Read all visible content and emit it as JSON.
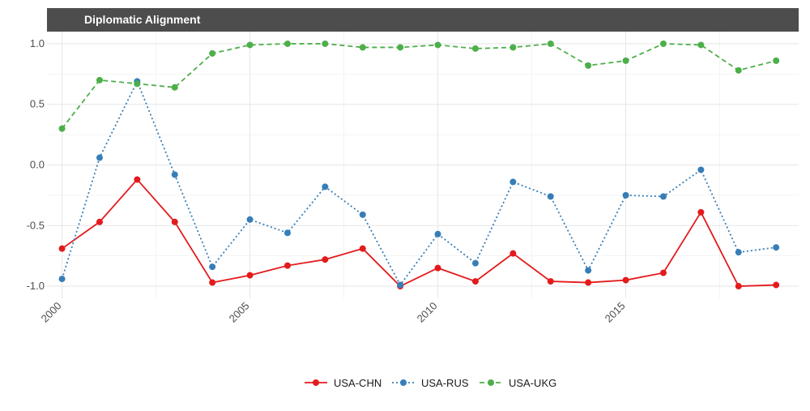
{
  "chart_data": {
    "type": "line",
    "title": "Diplomatic Alignment",
    "xlabel": "",
    "ylabel": "",
    "xlim": [
      1999.6,
      2019.6
    ],
    "ylim": [
      -1.1,
      1.1
    ],
    "x_ticks": [
      2000,
      2005,
      2010,
      2015
    ],
    "y_ticks": [
      1.0,
      0.5,
      0.0,
      -0.5,
      -1.0
    ],
    "y_tick_labels": [
      "1.0",
      "0.5",
      "0.0",
      "-0.5",
      "-1.0"
    ],
    "grid": true,
    "legend_position": "bottom",
    "x": [
      2000,
      2001,
      2002,
      2003,
      2004,
      2005,
      2006,
      2007,
      2008,
      2009,
      2010,
      2011,
      2012,
      2013,
      2014,
      2015,
      2016,
      2017,
      2018,
      2019
    ],
    "series": [
      {
        "name": "USA-CHN",
        "color": "#e41a1c",
        "line_style": "solid",
        "values": [
          -0.69,
          -0.47,
          -0.12,
          -0.47,
          -0.97,
          -0.91,
          -0.83,
          -0.78,
          -0.69,
          -1.0,
          -0.85,
          -0.96,
          -0.73,
          -0.96,
          -0.97,
          -0.95,
          -0.89,
          -0.39,
          -1.0,
          -0.99
        ]
      },
      {
        "name": "USA-RUS",
        "color": "#377eb8",
        "line_style": "dotted",
        "values": [
          -0.94,
          0.06,
          0.69,
          -0.08,
          -0.84,
          -0.45,
          -0.56,
          -0.18,
          -0.41,
          -0.99,
          -0.57,
          -0.81,
          -0.14,
          -0.26,
          -0.87,
          -0.25,
          -0.26,
          -0.04,
          -0.72,
          -0.68
        ]
      },
      {
        "name": "USA-UKG",
        "color": "#4daf4a",
        "line_style": "dashed",
        "values": [
          0.3,
          0.7,
          0.67,
          0.64,
          0.92,
          0.99,
          1.0,
          1.0,
          0.97,
          0.97,
          0.99,
          0.96,
          0.97,
          1.0,
          0.82,
          0.86,
          1.0,
          0.99,
          0.78,
          0.86
        ]
      }
    ]
  }
}
